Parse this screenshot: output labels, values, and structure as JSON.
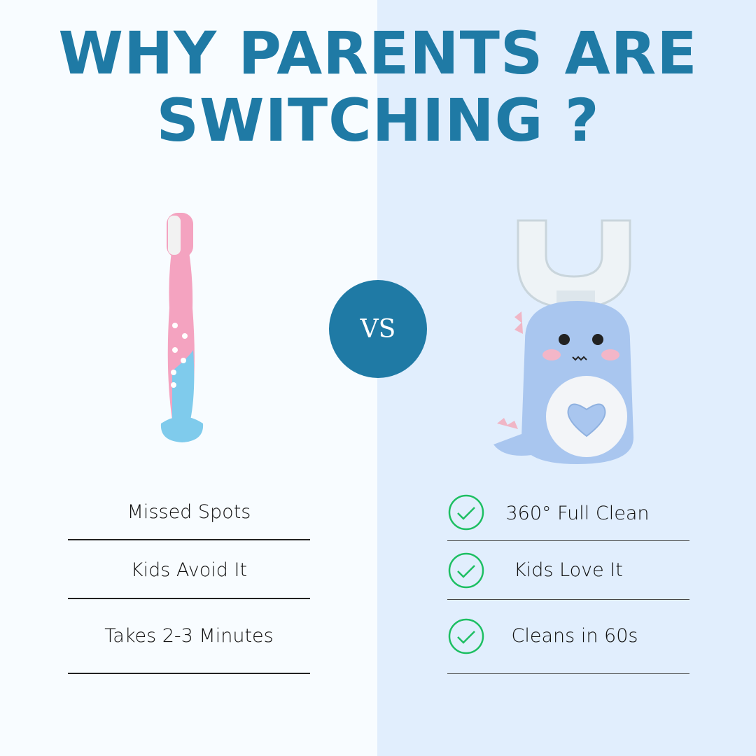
{
  "title": {
    "line1": "WHY PARENTS ARE",
    "line2": "SWITCHING  ?"
  },
  "vs_label": "VS",
  "colors": {
    "accent": "#1f7aa5",
    "check": "#1dbf62",
    "left_bg": "#f8fcff",
    "right_bg": "#e1eefd"
  },
  "left": {
    "items": [
      {
        "label": "Missed Spots"
      },
      {
        "label": "Kids Avoid It"
      },
      {
        "label": "Takes 2-3 Minutes"
      }
    ]
  },
  "right": {
    "items": [
      {
        "label": "360° Full Clean",
        "icon": "check-circle-icon"
      },
      {
        "label": "Kids Love It",
        "icon": "check-circle-icon"
      },
      {
        "label": "Cleans in 60s",
        "icon": "check-circle-icon"
      }
    ]
  }
}
